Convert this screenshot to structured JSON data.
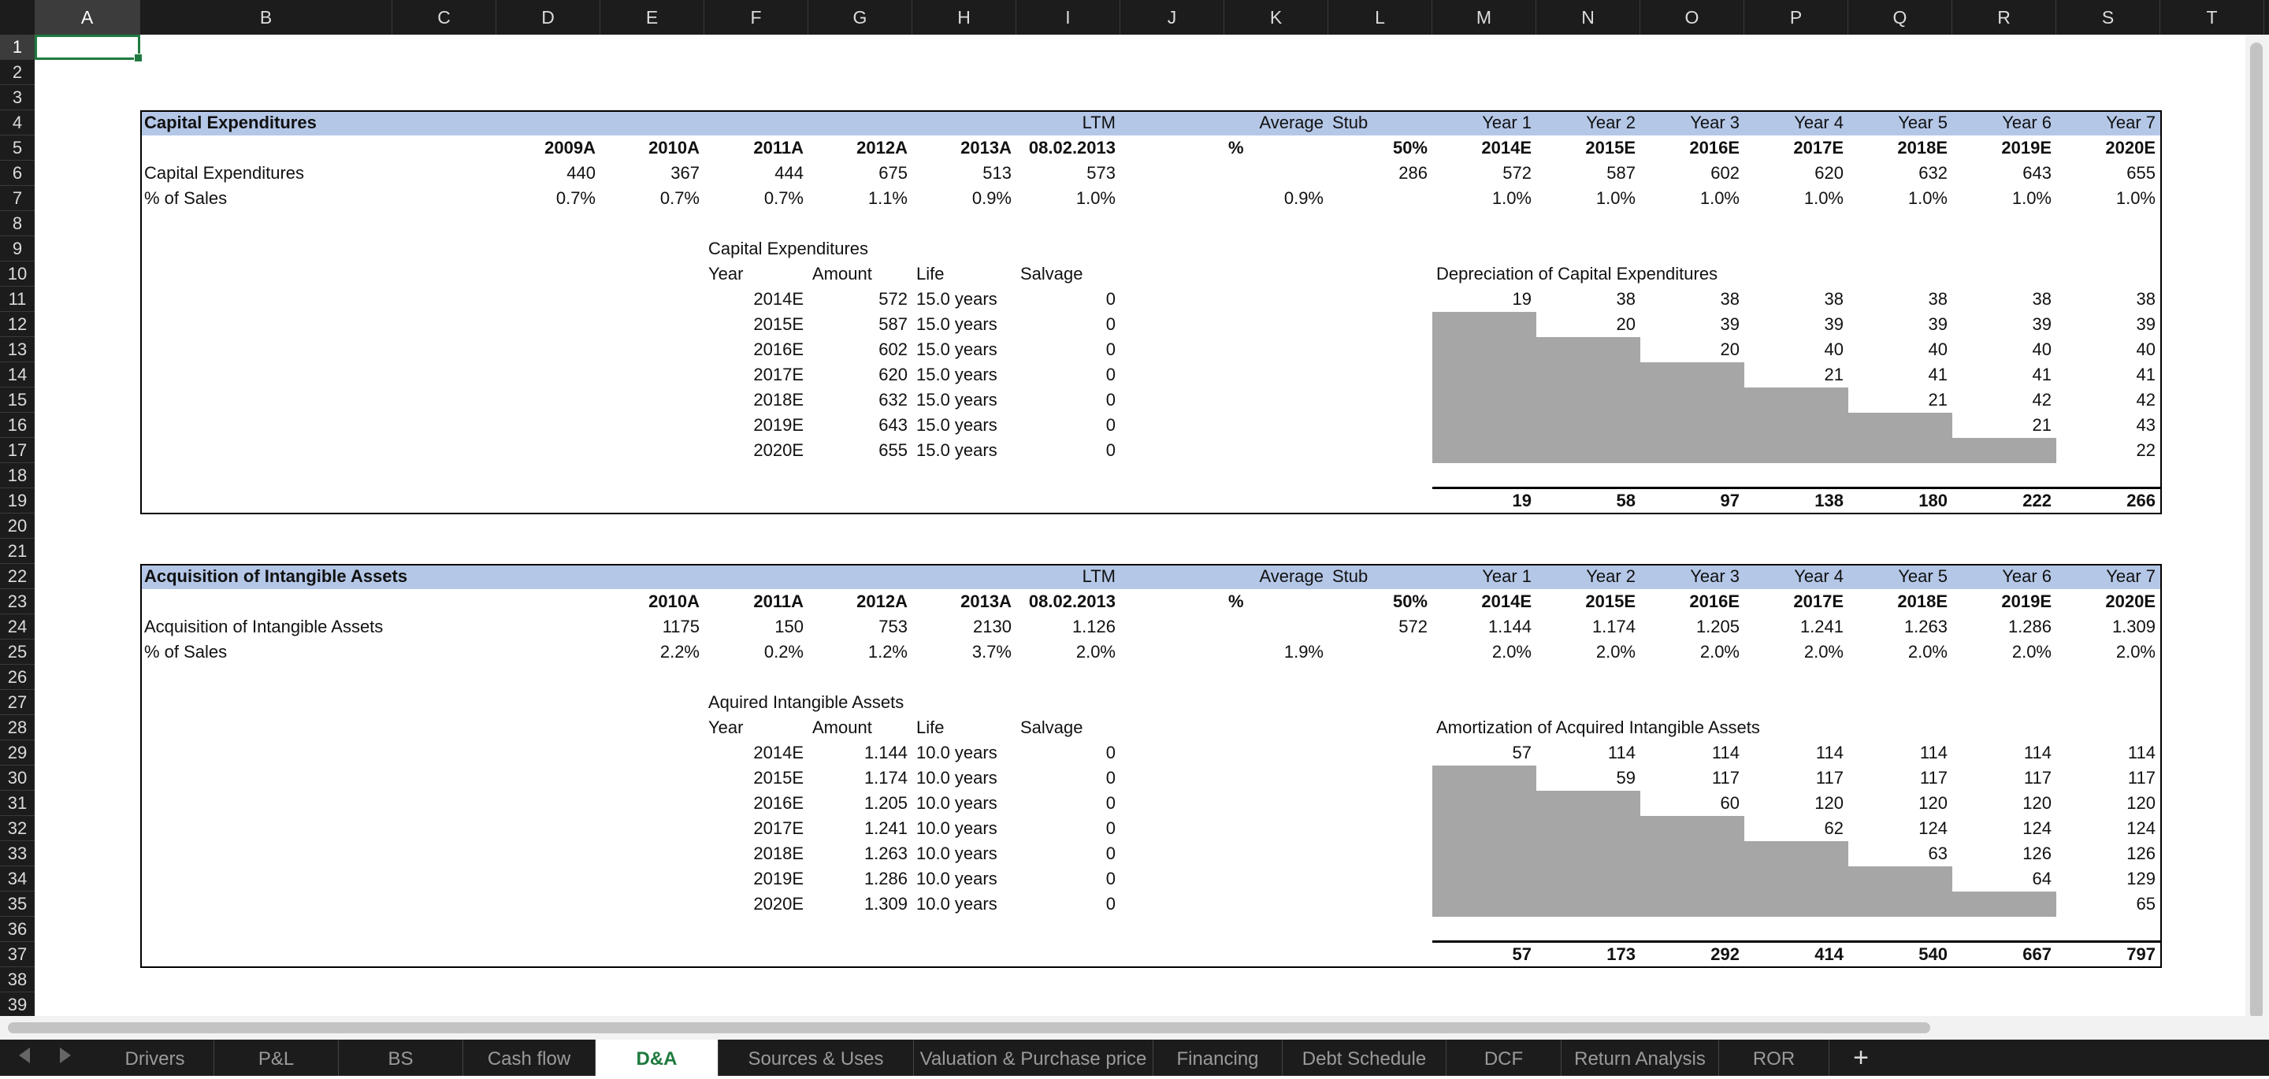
{
  "columns": [
    "A",
    "B",
    "C",
    "D",
    "E",
    "F",
    "G",
    "H",
    "I",
    "J",
    "K",
    "L",
    "M",
    "N",
    "O",
    "P",
    "Q",
    "R",
    "S",
    "T"
  ],
  "rows": [
    "1",
    "2",
    "3",
    "4",
    "5",
    "6",
    "7",
    "8",
    "9",
    "10",
    "11",
    "12",
    "13",
    "14",
    "15",
    "16",
    "17",
    "18",
    "19",
    "20",
    "21",
    "22",
    "23",
    "24",
    "25",
    "26",
    "27",
    "28",
    "29",
    "30",
    "31",
    "32",
    "33",
    "34",
    "35",
    "36",
    "37",
    "38",
    "39"
  ],
  "sections": [
    {
      "title": "Capital Expenditures",
      "ltm_label": "LTM",
      "average_label": "Average",
      "stub_label": "Stub",
      "year_labels": [
        "Year 1",
        "Year 2",
        "Year 3",
        "Year 4",
        "Year 5",
        "Year 6",
        "Year 7"
      ],
      "hist_periods": [
        "2009A",
        "2010A",
        "2011A",
        "2012A",
        "2013A"
      ],
      "ltm_date": "08.02.2013",
      "pct_label": "%",
      "stub_pct": "50%",
      "proj_periods": [
        "2014E",
        "2015E",
        "2016E",
        "2017E",
        "2018E",
        "2019E",
        "2020E"
      ],
      "row1_label": "Capital Expenditures",
      "row1_hist": [
        "440",
        "367",
        "444",
        "675",
        "513"
      ],
      "row1_ltm": "573",
      "row1_stub": "286",
      "row1_proj": [
        "572",
        "587",
        "602",
        "620",
        "632",
        "643",
        "655"
      ],
      "row2_label": "% of Sales",
      "row2_hist": [
        "0.7%",
        "0.7%",
        "0.7%",
        "1.1%",
        "0.9%"
      ],
      "row2_ltm": "1.0%",
      "row2_avg": "0.9%",
      "row2_proj": [
        "1.0%",
        "1.0%",
        "1.0%",
        "1.0%",
        "1.0%",
        "1.0%",
        "1.0%"
      ],
      "schedule_title": "Capital Expenditures",
      "schedule_headers": [
        "Year",
        "Amount",
        "Life",
        "Salvage"
      ],
      "schedule_rows": [
        {
          "year": "2014E",
          "amount": "572",
          "life": "15.0 years",
          "salvage": "0"
        },
        {
          "year": "2015E",
          "amount": "587",
          "life": "15.0 years",
          "salvage": "0"
        },
        {
          "year": "2016E",
          "amount": "602",
          "life": "15.0 years",
          "salvage": "0"
        },
        {
          "year": "2017E",
          "amount": "620",
          "life": "15.0 years",
          "salvage": "0"
        },
        {
          "year": "2018E",
          "amount": "632",
          "life": "15.0 years",
          "salvage": "0"
        },
        {
          "year": "2019E",
          "amount": "643",
          "life": "15.0 years",
          "salvage": "0"
        },
        {
          "year": "2020E",
          "amount": "655",
          "life": "15.0 years",
          "salvage": "0"
        }
      ],
      "matrix_title": "Depreciation of Capital Expenditures",
      "matrix": [
        [
          "19",
          "38",
          "38",
          "38",
          "38",
          "38",
          "38"
        ],
        [
          "",
          "20",
          "39",
          "39",
          "39",
          "39",
          "39"
        ],
        [
          "",
          "",
          "20",
          "40",
          "40",
          "40",
          "40"
        ],
        [
          "",
          "",
          "",
          "21",
          "41",
          "41",
          "41"
        ],
        [
          "",
          "",
          "",
          "",
          "21",
          "42",
          "42"
        ],
        [
          "",
          "",
          "",
          "",
          "",
          "21",
          "43"
        ],
        [
          "",
          "",
          "",
          "",
          "",
          "",
          "22"
        ]
      ],
      "totals": [
        "19",
        "58",
        "97",
        "138",
        "180",
        "222",
        "266"
      ]
    },
    {
      "title": "Acquisition of Intangible Assets",
      "ltm_label": "LTM",
      "average_label": "Average",
      "stub_label": "Stub",
      "year_labels": [
        "Year 1",
        "Year 2",
        "Year 3",
        "Year 4",
        "Year 5",
        "Year 6",
        "Year 7"
      ],
      "hist_periods": [
        "",
        "2010A",
        "2011A",
        "2012A",
        "2013A"
      ],
      "ltm_date": "08.02.2013",
      "pct_label": "%",
      "stub_pct": "50%",
      "proj_periods": [
        "2014E",
        "2015E",
        "2016E",
        "2017E",
        "2018E",
        "2019E",
        "2020E"
      ],
      "row1_label": "Acquisition of Intangible Assets",
      "row1_hist": [
        "",
        "1175",
        "150",
        "753",
        "2130"
      ],
      "row1_ltm": "1.126",
      "row1_stub": "572",
      "row1_proj": [
        "1.144",
        "1.174",
        "1.205",
        "1.241",
        "1.263",
        "1.286",
        "1.309"
      ],
      "row2_label": "% of Sales",
      "row2_hist": [
        "",
        "2.2%",
        "0.2%",
        "1.2%",
        "3.7%"
      ],
      "row2_ltm": "2.0%",
      "row2_avg": "1.9%",
      "row2_proj": [
        "2.0%",
        "2.0%",
        "2.0%",
        "2.0%",
        "2.0%",
        "2.0%",
        "2.0%"
      ],
      "schedule_title": "Aquired Intangible Assets",
      "schedule_headers": [
        "Year",
        "Amount",
        "Life",
        "Salvage"
      ],
      "schedule_rows": [
        {
          "year": "2014E",
          "amount": "1.144",
          "life": "10.0 years",
          "salvage": "0"
        },
        {
          "year": "2015E",
          "amount": "1.174",
          "life": "10.0 years",
          "salvage": "0"
        },
        {
          "year": "2016E",
          "amount": "1.205",
          "life": "10.0 years",
          "salvage": "0"
        },
        {
          "year": "2017E",
          "amount": "1.241",
          "life": "10.0 years",
          "salvage": "0"
        },
        {
          "year": "2018E",
          "amount": "1.263",
          "life": "10.0 years",
          "salvage": "0"
        },
        {
          "year": "2019E",
          "amount": "1.286",
          "life": "10.0 years",
          "salvage": "0"
        },
        {
          "year": "2020E",
          "amount": "1.309",
          "life": "10.0 years",
          "salvage": "0"
        }
      ],
      "matrix_title": "Amortization of Acquired Intangible Assets",
      "matrix": [
        [
          "57",
          "114",
          "114",
          "114",
          "114",
          "114",
          "114"
        ],
        [
          "",
          "59",
          "117",
          "117",
          "117",
          "117",
          "117"
        ],
        [
          "",
          "",
          "60",
          "120",
          "120",
          "120",
          "120"
        ],
        [
          "",
          "",
          "",
          "62",
          "124",
          "124",
          "124"
        ],
        [
          "",
          "",
          "",
          "",
          "63",
          "126",
          "126"
        ],
        [
          "",
          "",
          "",
          "",
          "",
          "64",
          "129"
        ],
        [
          "",
          "",
          "",
          "",
          "",
          "",
          "65"
        ]
      ],
      "totals": [
        "57",
        "173",
        "292",
        "414",
        "540",
        "667",
        "797"
      ]
    }
  ],
  "sheet_tabs": [
    "Drivers",
    "P&L",
    "BS",
    "Cash flow",
    "D&A",
    "Sources & Uses",
    "Valuation & Purchase price",
    "Financing",
    "Debt Schedule",
    "DCF",
    "Return Analysis",
    "ROR"
  ],
  "active_tab": "D&A",
  "add_tab_label": "+",
  "colors": {
    "header_band": "#b4c7e7",
    "depreciation_fill": "#a6a6a6",
    "active_tab_text": "#1f7a3f"
  }
}
